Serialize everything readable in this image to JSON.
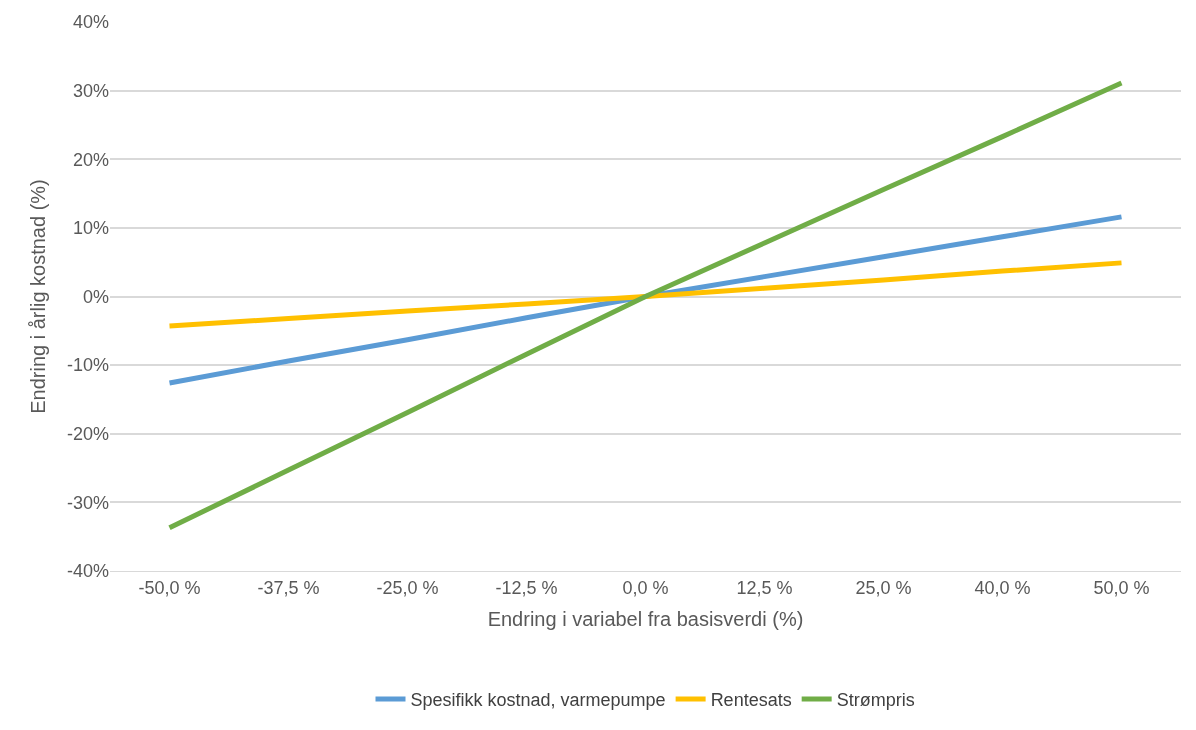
{
  "chart_data": {
    "type": "line",
    "xlabel": "Endring i variabel fra basisverdi (%)",
    "ylabel": "Endring i årlig kostnad (%)",
    "categories": [
      "-50,0 %",
      "-37,5 %",
      "-25,0 %",
      "-12,5 %",
      "0,0 %",
      "12,5 %",
      "25,0 %",
      "40,0 %",
      "50,0 %"
    ],
    "series": [
      {
        "name": "Spesifikk kostnad, varmepumpe",
        "color": "#5b9bd5",
        "values": [
          -12.6,
          -9.4,
          -6.3,
          -3.1,
          0,
          2.9,
          5.8,
          8.7,
          11.6
        ]
      },
      {
        "name": "Rentesats",
        "color": "#ffc000",
        "values": [
          -4.3,
          -3.2,
          -2.1,
          -1.1,
          0,
          1.2,
          2.4,
          3.7,
          4.9
        ]
      },
      {
        "name": "Strømpris",
        "color": "#70ad47",
        "values": [
          -33.7,
          -25.3,
          -16.9,
          -8.4,
          0,
          7.8,
          15.6,
          23.3,
          31.1
        ]
      }
    ],
    "ylim": [
      -40,
      40
    ],
    "yticks": [
      {
        "value": -40,
        "label": "-40%"
      },
      {
        "value": -30,
        "label": "-30%"
      },
      {
        "value": -20,
        "label": "-20%"
      },
      {
        "value": -10,
        "label": "-10%"
      },
      {
        "value": 0,
        "label": "0%"
      },
      {
        "value": 10,
        "label": "10%"
      },
      {
        "value": 20,
        "label": "20%"
      },
      {
        "value": 30,
        "label": "30%"
      },
      {
        "value": 40,
        "label": "40%"
      }
    ],
    "grid": "y",
    "legend": "bottom",
    "marker": "none",
    "line_style": "solid"
  }
}
